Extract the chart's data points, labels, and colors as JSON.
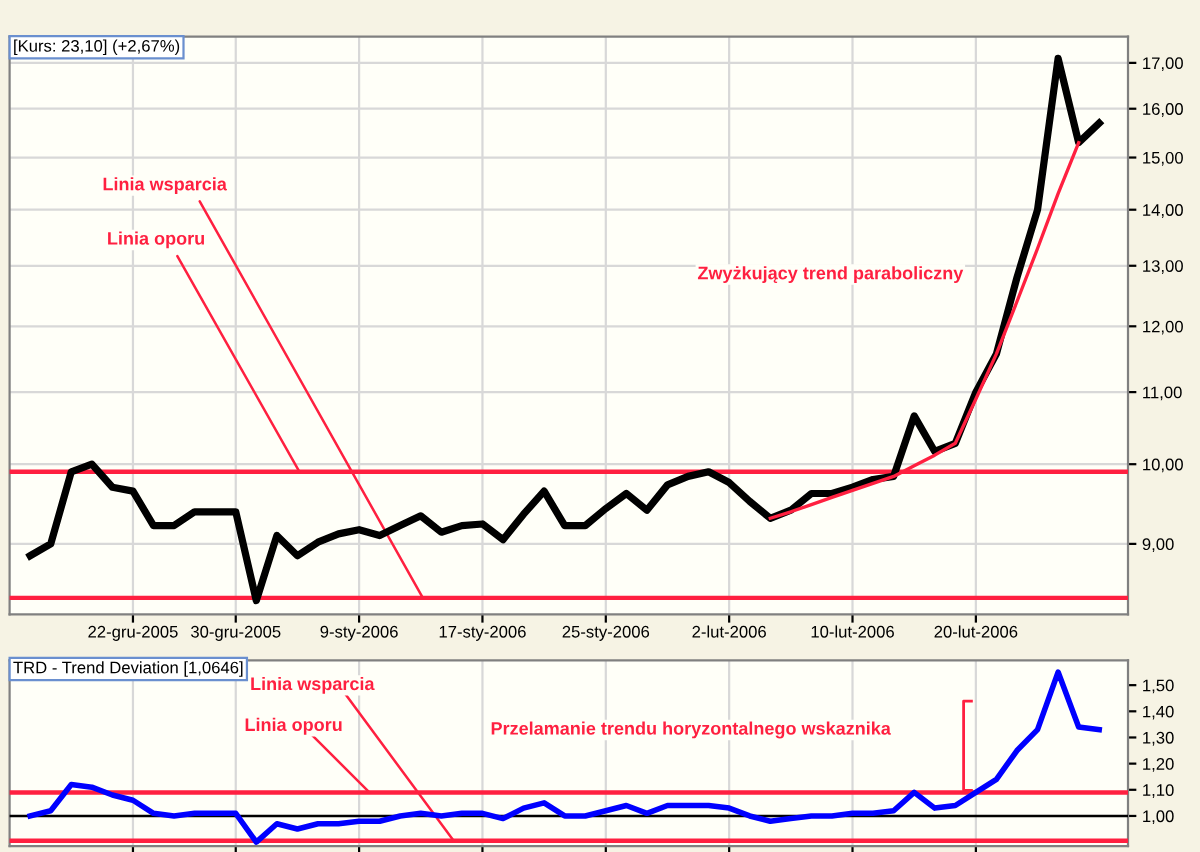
{
  "chart_data": [
    {
      "type": "line",
      "title": "[Kurs: 23,10] (+2,67%)",
      "categories": [
        null,
        null,
        null,
        null,
        null,
        "22-gru-2005",
        null,
        null,
        null,
        null,
        "30-gru-2005",
        null,
        null,
        null,
        null,
        null,
        "9-sty-2006",
        null,
        null,
        null,
        null,
        null,
        "17-sty-2006",
        null,
        null,
        null,
        null,
        null,
        "25-sty-2006",
        null,
        null,
        null,
        null,
        null,
        "2-lut-2006",
        null,
        null,
        null,
        null,
        null,
        "10-lut-2006",
        null,
        null,
        null,
        null,
        null,
        "20-lut-2006",
        null,
        null,
        null,
        null,
        null,
        null
      ],
      "series": [
        {
          "color": "#000000",
          "values": [
            8.86,
            9.0,
            9.9,
            10.0,
            9.7,
            9.65,
            9.22,
            9.22,
            9.39,
            9.39,
            9.39,
            8.35,
            9.1,
            8.86,
            9.02,
            9.12,
            9.17,
            9.1,
            9.22,
            9.34,
            9.14,
            9.22,
            9.24,
            9.05,
            9.36,
            9.65,
            9.22,
            9.22,
            9.43,
            9.62,
            9.41,
            9.73,
            9.84,
            9.9,
            9.76,
            9.52,
            9.31,
            9.41,
            9.62,
            9.62,
            9.7,
            9.8,
            9.84,
            10.66,
            10.17,
            10.28,
            11.0,
            11.57,
            12.8,
            14.0,
            17.1,
            15.3,
            15.7
          ]
        },
        {
          "type": "line",
          "color": "#ff2040",
          "values": [
            null,
            null,
            null,
            null,
            null,
            null,
            null,
            null,
            null,
            null,
            null,
            null,
            null,
            null,
            null,
            null,
            null,
            null,
            null,
            null,
            null,
            null,
            null,
            null,
            null,
            null,
            null,
            null,
            null,
            null,
            null,
            null,
            null,
            null,
            null,
            null,
            9.31,
            9.39,
            9.48,
            9.57,
            9.66,
            9.75,
            9.84,
            9.98,
            10.12,
            10.28,
            10.9,
            11.57,
            12.4,
            13.3,
            14.3,
            15.3,
            null
          ]
        }
      ],
      "log": true,
      "ylim": [
        8.2,
        17.6
      ],
      "yticks": [
        {
          "value": 9,
          "label": "9,00"
        },
        {
          "value": 10,
          "label": "10,00"
        },
        {
          "value": 11,
          "label": "11,00"
        },
        {
          "value": 12,
          "label": "12,00"
        },
        {
          "value": 13,
          "label": "13,00"
        },
        {
          "value": 14,
          "label": "14,00"
        },
        {
          "value": 15,
          "label": "15,00"
        },
        {
          "value": 16,
          "label": "16,00"
        },
        {
          "value": 17,
          "label": "17,00"
        }
      ],
      "grid": true,
      "ref_lines": [
        {
          "axis": "y",
          "value": 9.9,
          "label": "Linia oporu",
          "color": "#ff2040"
        },
        {
          "axis": "y",
          "value": 8.38,
          "label": "Linia wsparcia",
          "color": "#ff2040"
        }
      ],
      "annotations": [
        "Zwyżkujący trend paraboliczny"
      ]
    },
    {
      "type": "line",
      "title": "TRD - Trend Deviation [1,0646]",
      "categories": [
        null,
        null,
        null,
        null,
        null,
        null,
        null,
        null,
        null,
        null,
        null,
        null,
        null,
        null,
        null,
        null,
        null,
        null,
        null,
        null,
        null,
        null,
        null,
        null,
        null,
        null,
        null,
        null,
        null,
        null,
        null,
        null,
        null,
        null,
        null,
        null,
        null,
        null,
        null,
        null,
        null,
        null,
        null,
        null,
        null,
        null,
        null,
        null,
        null,
        null,
        null,
        null,
        null
      ],
      "series": [
        {
          "color": "#0000ff",
          "values": [
            1.0,
            1.02,
            1.12,
            1.11,
            1.08,
            1.06,
            1.01,
            1.0,
            1.01,
            1.01,
            1.01,
            0.9,
            0.97,
            0.95,
            0.97,
            0.97,
            0.98,
            0.98,
            1.0,
            1.01,
            1.0,
            1.01,
            1.01,
            0.99,
            1.03,
            1.05,
            1.0,
            1.0,
            1.02,
            1.04,
            1.01,
            1.04,
            1.04,
            1.04,
            1.03,
            1.0,
            0.98,
            0.99,
            1.0,
            1.0,
            1.01,
            1.01,
            1.02,
            1.09,
            1.03,
            1.04,
            1.09,
            1.14,
            1.25,
            1.33,
            1.55,
            1.34,
            1.33
          ]
        }
      ],
      "ylim": [
        0.885,
        1.595
      ],
      "yticks": [
        {
          "value": 1.0,
          "label": "1,00"
        },
        {
          "value": 1.1,
          "label": "1,10"
        },
        {
          "value": 1.2,
          "label": "1,20"
        },
        {
          "value": 1.3,
          "label": "1,30"
        },
        {
          "value": 1.4,
          "label": "1,40"
        },
        {
          "value": 1.5,
          "label": "1,50"
        }
      ],
      "grid": "x",
      "tick_labels": "y",
      "ref_lines": [
        {
          "axis": "y",
          "value": 1.09,
          "label": "Linia oporu",
          "color": "#ff2040"
        },
        {
          "axis": "y",
          "value": 0.905,
          "label": "Linia wsparcia",
          "color": "#ff2040"
        },
        {
          "axis": "y",
          "value": 1.0,
          "color": "#000000"
        }
      ],
      "annotations": [
        "Przelamanie trendu horyzontalnego wskaznika"
      ]
    }
  ]
}
